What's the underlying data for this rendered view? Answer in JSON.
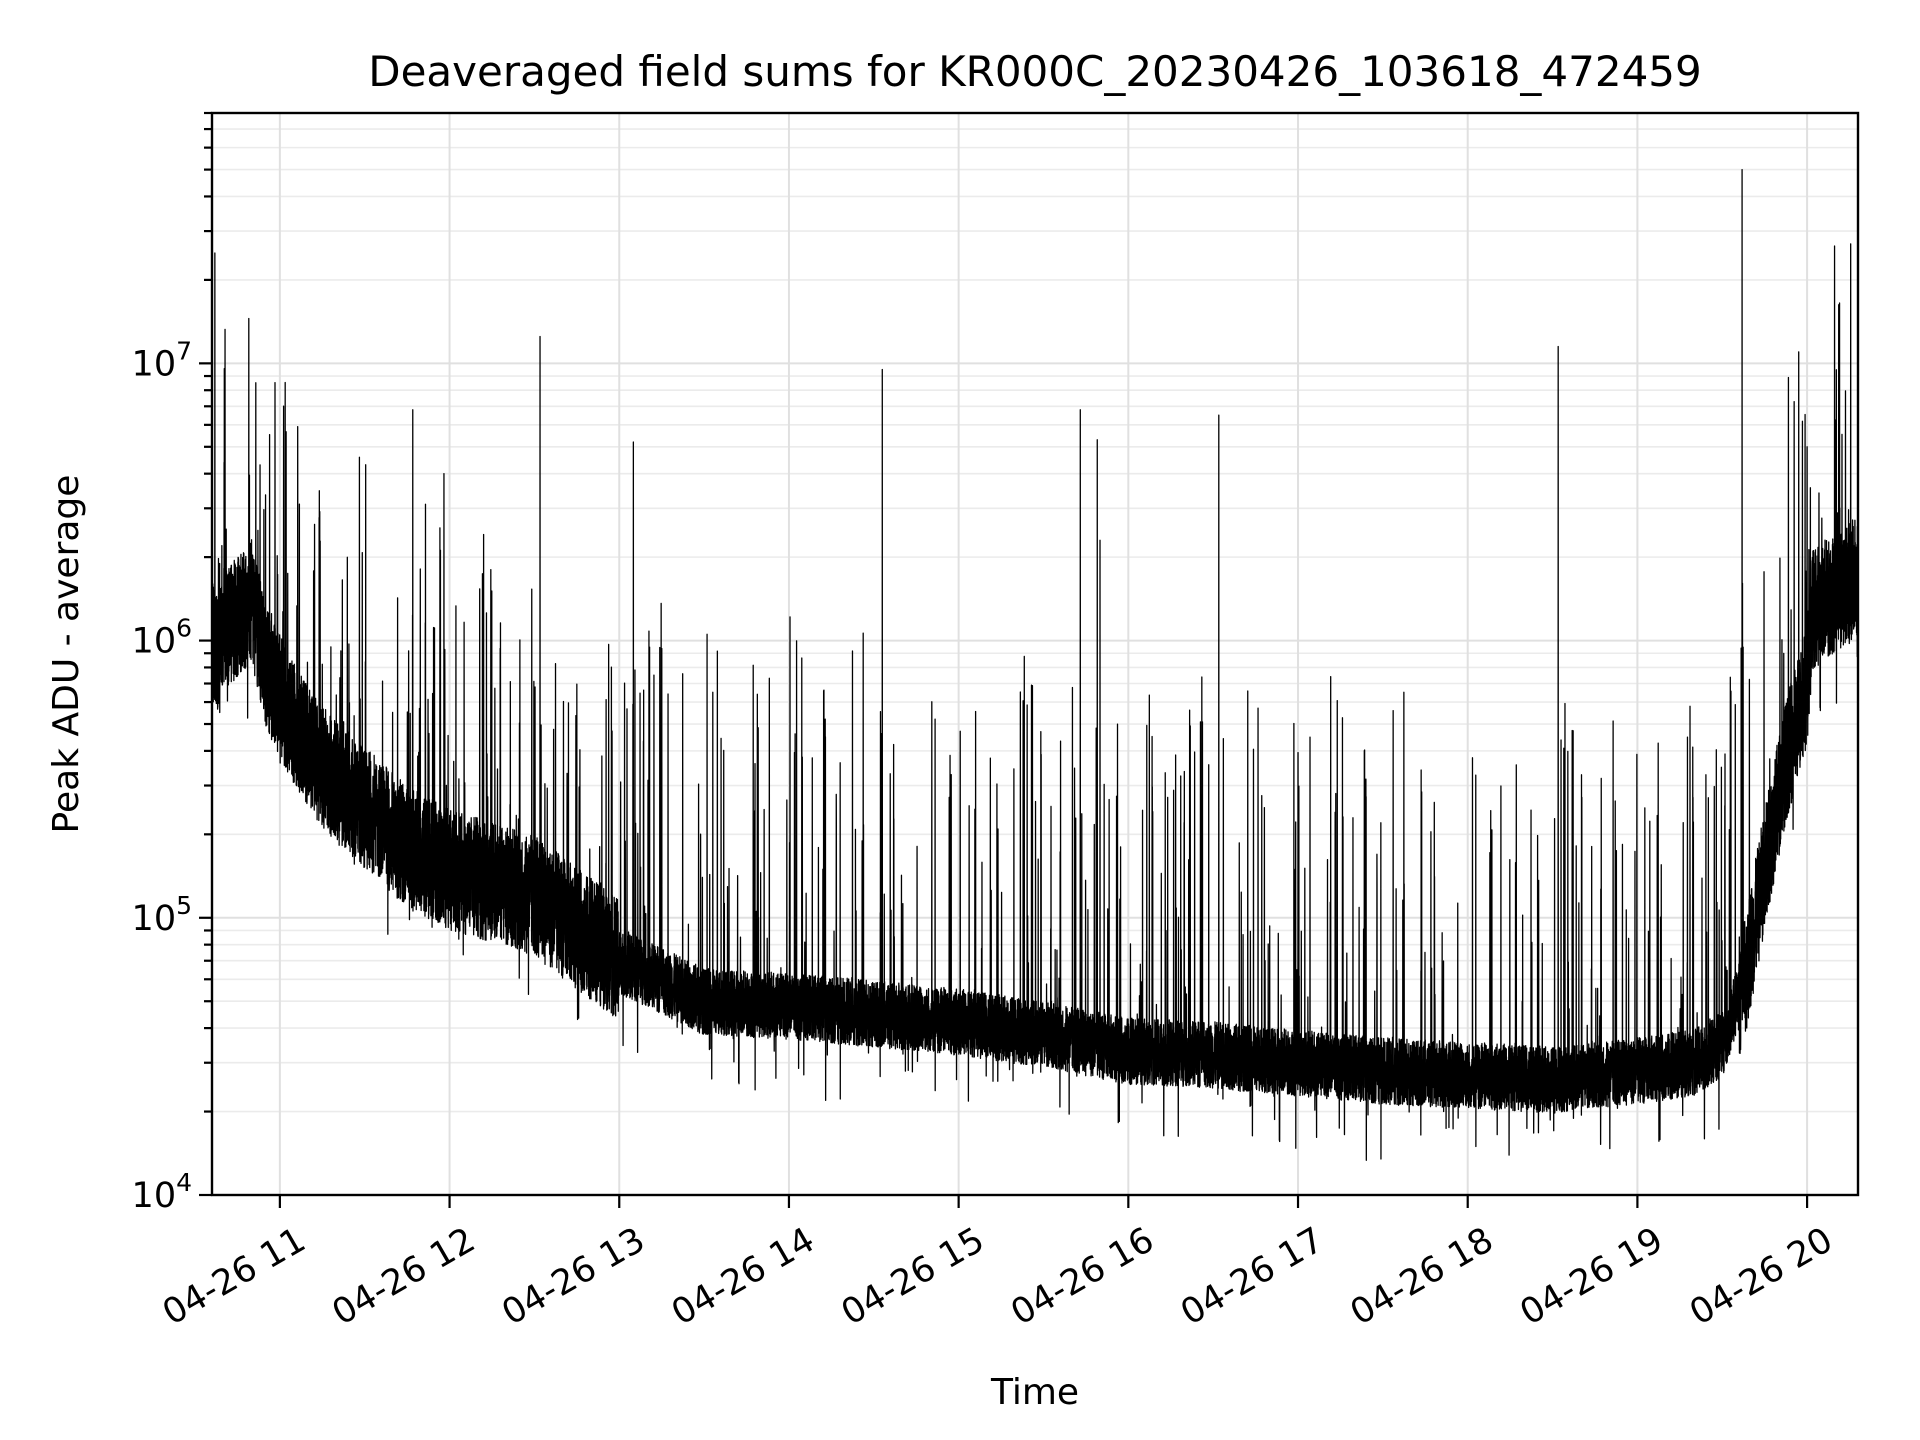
{
  "chart_data": {
    "type": "line",
    "title": "Deaveraged field sums for KR000C_20230426_103618_472459",
    "xlabel": "Time",
    "ylabel": "Peak ADU - average",
    "y_scale": "log",
    "ylim": [
      10000,
      80000000
    ],
    "xlim": [
      "2023-04-26 10:36",
      "2023-04-26 20:18"
    ],
    "x_tick_labels": [
      "04-26 11",
      "04-26 12",
      "04-26 13",
      "04-26 14",
      "04-26 15",
      "04-26 16",
      "04-26 17",
      "04-26 18",
      "04-26 19",
      "04-26 20"
    ],
    "x_ticks": [
      "2023-04-26 11:00",
      "2023-04-26 12:00",
      "2023-04-26 13:00",
      "2023-04-26 14:00",
      "2023-04-26 15:00",
      "2023-04-26 16:00",
      "2023-04-26 17:00",
      "2023-04-26 18:00",
      "2023-04-26 19:00",
      "2023-04-26 20:00"
    ],
    "y_ticks": [
      {
        "base": "10",
        "exp": "4",
        "value": 10000
      },
      {
        "base": "10",
        "exp": "5",
        "value": 100000
      },
      {
        "base": "10",
        "exp": "6",
        "value": 1000000
      },
      {
        "base": "10",
        "exp": "7",
        "value": 10000000
      }
    ],
    "grid": true,
    "grid_minor": true,
    "line_color": "#000000",
    "series": [
      {
        "baseline": {
          "x": [
            "2023-04-26 10:36",
            "2023-04-26 10:38",
            "2023-04-26 10:40",
            "2023-04-26 10:45",
            "2023-04-26 10:50",
            "2023-04-26 10:55",
            "2023-04-26 11:05",
            "2023-04-26 11:15",
            "2023-04-26 11:30",
            "2023-04-26 11:45",
            "2023-04-26 12:00",
            "2023-04-26 12:30",
            "2023-04-26 13:00",
            "2023-04-26 13:30",
            "2023-04-26 14:00",
            "2023-04-26 14:30",
            "2023-04-26 15:00",
            "2023-04-26 15:30",
            "2023-04-26 16:00",
            "2023-04-26 16:30",
            "2023-04-26 17:00",
            "2023-04-26 17:30",
            "2023-04-26 18:00",
            "2023-04-26 18:30",
            "2023-04-26 19:00",
            "2023-04-26 19:20",
            "2023-04-26 19:30",
            "2023-04-26 19:38",
            "2023-04-26 19:45",
            "2023-04-26 19:52",
            "2023-04-26 20:00",
            "2023-04-26 20:02",
            "2023-04-26 20:10",
            "2023-04-26 20:18"
          ],
          "y": [
            1000000,
            900000,
            1100000,
            1200000,
            1400000,
            800000,
            500000,
            350000,
            250000,
            180000,
            150000,
            120000,
            70000,
            50000,
            48000,
            45000,
            42000,
            38000,
            33000,
            32000,
            30000,
            28000,
            27000,
            26000,
            28000,
            30000,
            35000,
            60000,
            150000,
            350000,
            700000,
            1300000,
            1500000,
            1700000
          ]
        },
        "spikes": {
          "x": [
            "2023-04-26 10:37",
            "2023-04-26 10:53",
            "2023-04-26 11:47",
            "2023-04-26 11:58",
            "2023-04-26 12:32",
            "2023-04-26 13:05",
            "2023-04-26 14:33",
            "2023-04-26 15:43",
            "2023-04-26 15:49",
            "2023-04-26 15:50",
            "2023-04-26 16:32",
            "2023-04-26 18:32",
            "2023-04-26 19:37",
            "2023-04-26 20:00",
            "2023-04-26 20:18"
          ],
          "y": [
            25000000,
            4300000,
            6800000,
            4000000,
            12500000,
            5200000,
            9500000,
            6800000,
            5300000,
            2300000,
            6500000,
            11500000,
            50000000,
            5000000,
            5500000
          ]
        },
        "note_points_per_hour": 1600
      }
    ]
  }
}
